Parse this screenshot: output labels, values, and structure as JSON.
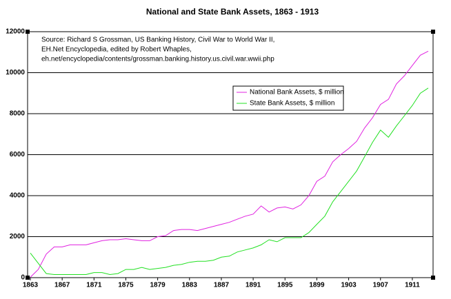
{
  "chart_data": {
    "type": "line",
    "title": "National and State Bank Assets, 1863 - 1913",
    "annotation": [
      "Source: Richard S Grossman, US Banking History, Civil War to World War II,",
      "EH.Net Encyclopedia, edited by Robert Whaples,",
      "eh.net/encyclopedia/contents/grossman.banking.history.us.civil.war.wwii.php"
    ],
    "x": [
      1863,
      1864,
      1865,
      1866,
      1867,
      1868,
      1869,
      1870,
      1871,
      1872,
      1873,
      1874,
      1875,
      1876,
      1877,
      1878,
      1879,
      1880,
      1881,
      1882,
      1883,
      1884,
      1885,
      1886,
      1887,
      1888,
      1889,
      1890,
      1891,
      1892,
      1893,
      1894,
      1895,
      1896,
      1897,
      1898,
      1899,
      1900,
      1901,
      1902,
      1903,
      1904,
      1905,
      1906,
      1907,
      1908,
      1909,
      1910,
      1911,
      1912,
      1913
    ],
    "series": [
      {
        "name": "National Bank Assets, $ million",
        "color": "#e020e0",
        "values": [
          20,
          400,
          1150,
          1500,
          1500,
          1600,
          1600,
          1600,
          1700,
          1800,
          1850,
          1850,
          1900,
          1850,
          1800,
          1800,
          2000,
          2050,
          2300,
          2350,
          2350,
          2300,
          2400,
          2500,
          2600,
          2700,
          2850,
          3000,
          3100,
          3500,
          3200,
          3400,
          3450,
          3350,
          3550,
          4000,
          4700,
          4950,
          5650,
          6000,
          6300,
          6650,
          7300,
          7800,
          8450,
          8700,
          9450,
          9850,
          10350,
          10850,
          11050
        ]
      },
      {
        "name": "State Bank Assets, $ million",
        "color": "#20e020",
        "values": [
          1200,
          700,
          200,
          150,
          150,
          150,
          150,
          150,
          250,
          250,
          150,
          200,
          400,
          400,
          500,
          400,
          450,
          500,
          600,
          650,
          750,
          800,
          800,
          850,
          1000,
          1050,
          1250,
          1350,
          1450,
          1600,
          1850,
          1750,
          1950,
          1950,
          1950,
          2200,
          2600,
          3000,
          3700,
          4200,
          4700,
          5200,
          5900,
          6600,
          7200,
          6850,
          7400,
          7900,
          8400,
          9000,
          9250
        ]
      }
    ],
    "xlim": [
      1863,
      1913
    ],
    "xticks": [
      1863,
      1867,
      1871,
      1875,
      1879,
      1883,
      1887,
      1891,
      1895,
      1899,
      1903,
      1907,
      1911
    ],
    "ylim": [
      0,
      12000
    ],
    "yticks": [
      0,
      2000,
      4000,
      6000,
      8000,
      10000,
      12000
    ],
    "grid": true
  }
}
